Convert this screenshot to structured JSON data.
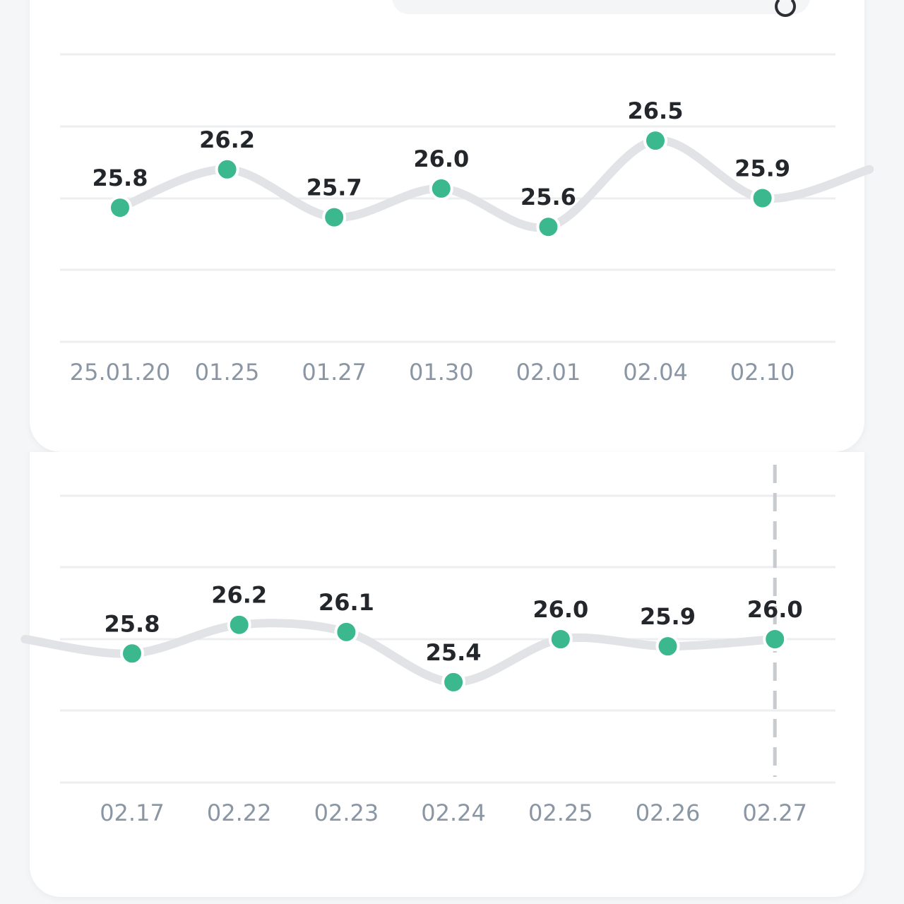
{
  "chart_data": [
    {
      "type": "line",
      "categories": [
        "25.01.20",
        "01.25",
        "01.27",
        "01.30",
        "02.01",
        "02.04",
        "02.10"
      ],
      "values": [
        25.8,
        26.2,
        25.7,
        26.0,
        25.6,
        26.5,
        25.9
      ],
      "value_labels": [
        "25.8",
        "26.2",
        "25.7",
        "26.0",
        "25.6",
        "26.5",
        "25.9"
      ],
      "continues_right": 26.2,
      "ylim": [
        24.4,
        27.4
      ],
      "grid": true,
      "colors": {
        "point": "#3cb88f",
        "line": "#e1e3e6",
        "grid": "#eceef0"
      }
    },
    {
      "type": "line",
      "categories": [
        "02.17",
        "02.22",
        "02.23",
        "02.24",
        "02.25",
        "02.26",
        "02.27"
      ],
      "values": [
        25.8,
        26.2,
        26.1,
        25.4,
        26.0,
        25.9,
        26.0
      ],
      "value_labels": [
        "25.8",
        "26.2",
        "26.1",
        "25.4",
        "26.0",
        "25.9",
        "26.0"
      ],
      "continues_left": 26.0,
      "ylim": [
        24.0,
        28.0
      ],
      "grid": true,
      "highlight_category": "02.27",
      "colors": {
        "point": "#3cb88f",
        "line": "#e1e3e6",
        "grid": "#eceef0",
        "marker": "#c7cbd0"
      }
    }
  ]
}
